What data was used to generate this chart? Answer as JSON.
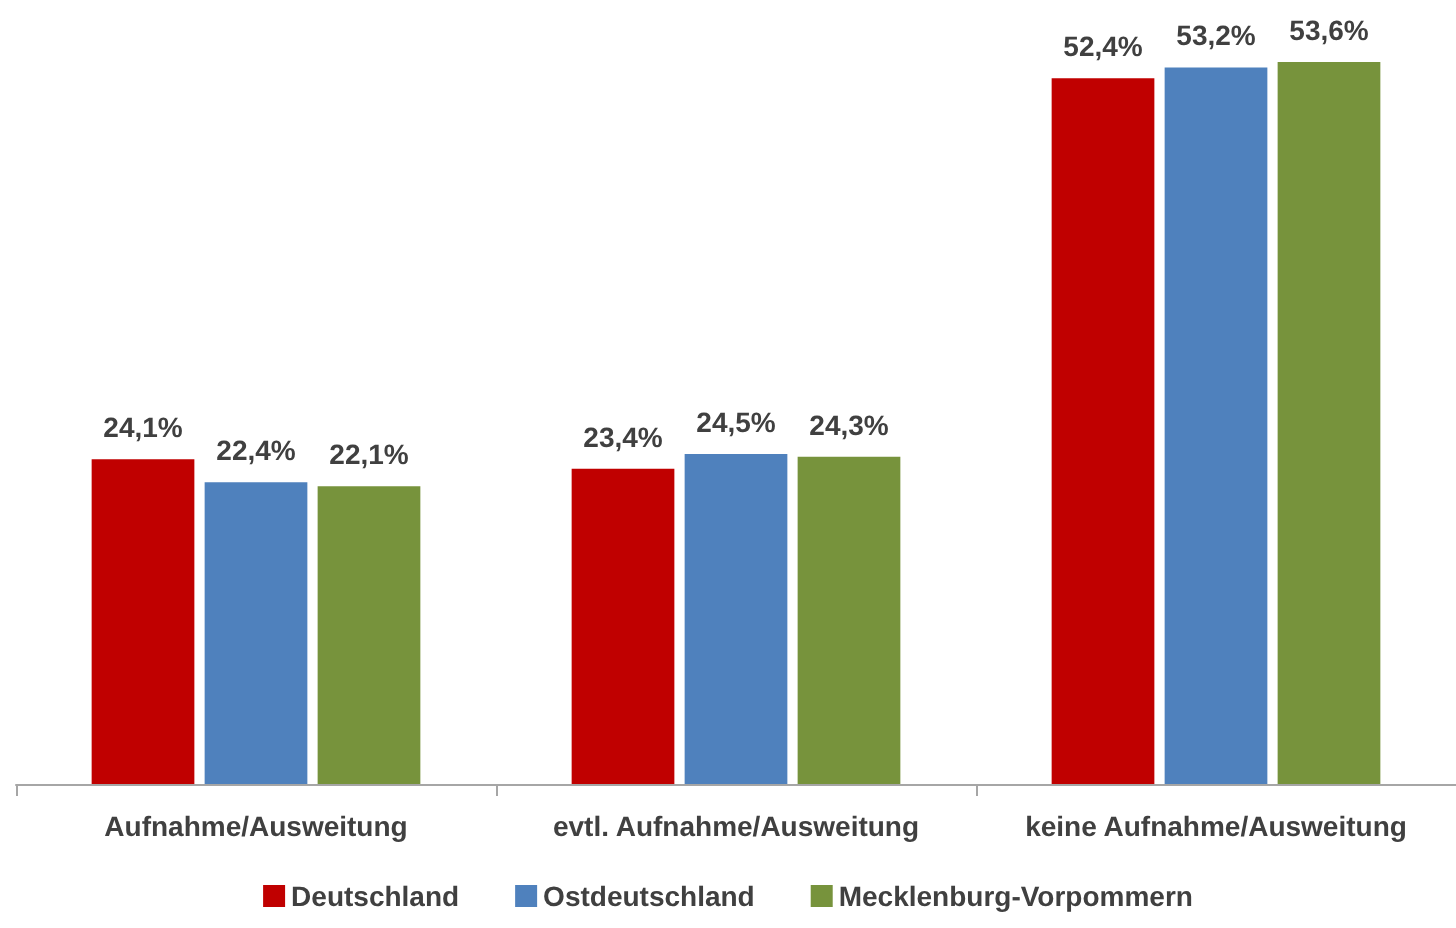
{
  "chart_data": {
    "type": "bar",
    "categories": [
      "Aufnahme/Ausweitung",
      "evtl. Aufnahme/Ausweitung",
      "keine Aufnahme/Ausweitung"
    ],
    "series": [
      {
        "name": "Deutschland",
        "color": "#c00000",
        "values": [
          24.1,
          23.4,
          52.4
        ],
        "value_labels": [
          "24,1%",
          "23,4%",
          "52,4%"
        ]
      },
      {
        "name": "Ostdeutschland",
        "color": "#4f81bd",
        "values": [
          22.4,
          24.5,
          53.2
        ],
        "value_labels": [
          "22,4%",
          "24,5%",
          "53,2%"
        ]
      },
      {
        "name": "Mecklenburg-Vorpommern",
        "color": "#77933c",
        "values": [
          22.1,
          24.3,
          53.6
        ],
        "value_labels": [
          "22,1%",
          "24,3%",
          "53,6%"
        ]
      }
    ],
    "legend": "bottom",
    "grid": false,
    "tick_labels": "x"
  }
}
